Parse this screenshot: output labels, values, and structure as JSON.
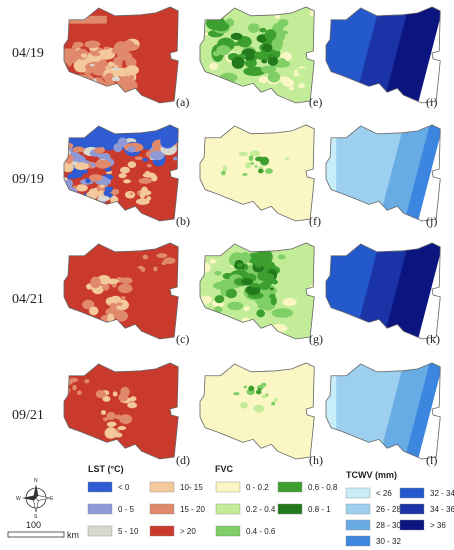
{
  "rows": [
    {
      "date": "04/19",
      "panels": [
        "(a)",
        "(e)",
        "(i)"
      ]
    },
    {
      "date": "09/19",
      "panels": [
        "(b)",
        "(f)",
        "(j)"
      ]
    },
    {
      "date": "04/21",
      "panels": [
        "(c)",
        "(g)",
        "(k)"
      ]
    },
    {
      "date": "09/21",
      "panels": [
        "(d)",
        "(h)",
        "(l)"
      ]
    }
  ],
  "legends": {
    "lst": {
      "title": "LST (°C)",
      "items": [
        {
          "label": "< 0",
          "color": "#2f5bd3"
        },
        {
          "label": "0 - 5",
          "color": "#8e9ad6"
        },
        {
          "label": "5 - 10",
          "color": "#d9d8cf"
        },
        {
          "label": "10- 15",
          "color": "#f3c99c"
        },
        {
          "label": "15 - 20",
          "color": "#e0896b"
        },
        {
          "label": "> 20",
          "color": "#c93a2c"
        }
      ]
    },
    "fvc": {
      "title": "FVC",
      "items": [
        {
          "label": "0 - 0.2",
          "color": "#fbf7c4"
        },
        {
          "label": "0.2 - 0.4",
          "color": "#c3ec99"
        },
        {
          "label": "0.4 - 0.6",
          "color": "#7fcf66"
        },
        {
          "label": "0.6 - 0.8",
          "color": "#3c9f2e"
        },
        {
          "label": "0.8 - 1",
          "color": "#237a1c"
        }
      ]
    },
    "tcwv": {
      "title": "TCWV (mm)",
      "items": [
        {
          "label": "< 26",
          "color": "#c7eef8"
        },
        {
          "label": "26 - 28",
          "color": "#9dd0ef"
        },
        {
          "label": "28 - 30",
          "color": "#68ace6"
        },
        {
          "label": "30 - 32",
          "color": "#3c86e0"
        },
        {
          "label": "32 - 34",
          "color": "#2459cc"
        },
        {
          "label": "34 - 36",
          "color": "#1a34a8"
        },
        {
          "label": "> 36",
          "color": "#0c1480"
        }
      ]
    }
  },
  "scale_bar": {
    "value": "100",
    "unit": "km"
  },
  "north_arrow": {
    "labels": [
      "N",
      "E",
      "S",
      "W"
    ],
    "icon": "compass-rose-icon"
  }
}
